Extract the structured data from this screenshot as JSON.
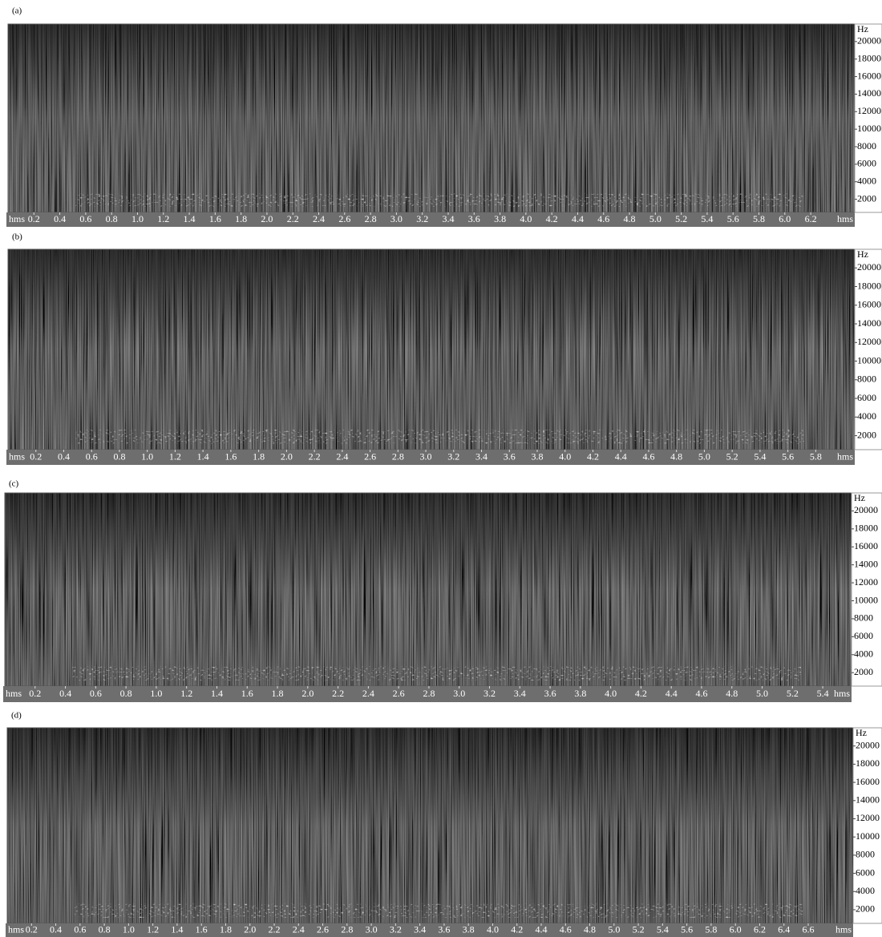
{
  "chart_data": [
    {
      "type": "spectrogram",
      "label": "(a)",
      "x_unit": "hms",
      "y_unit": "Hz",
      "xlim": [
        0,
        6.54
      ],
      "xticks": [
        0.2,
        0.4,
        0.6,
        0.8,
        {
          "value": 1,
          "label": "1.0"
        },
        1.2,
        1.4,
        1.6,
        1.8,
        {
          "value": 2,
          "label": "2.0"
        },
        2.2,
        2.4,
        2.6,
        2.8,
        {
          "value": 3,
          "label": "3.0"
        },
        3.2,
        3.4,
        3.6,
        3.8,
        {
          "value": 4,
          "label": "4.0"
        },
        4.2,
        4.4,
        4.6,
        4.8,
        {
          "value": 5,
          "label": "5.0"
        },
        5.2,
        5.4,
        5.6,
        5.8,
        {
          "value": 6,
          "label": "6.0"
        },
        6.2
      ],
      "ylim": [
        500,
        22000
      ],
      "yticks": [
        2000,
        4000,
        6000,
        8000,
        10000,
        12000,
        14000,
        16000,
        18000,
        20000
      ]
    },
    {
      "type": "spectrogram",
      "label": "(b)",
      "x_unit": "hms",
      "y_unit": "Hz",
      "xlim": [
        0,
        6.08
      ],
      "xticks": [
        0.2,
        0.4,
        0.6,
        0.8,
        {
          "value": 1,
          "label": "1.0"
        },
        1.2,
        1.4,
        1.6,
        1.8,
        {
          "value": 2,
          "label": "2.0"
        },
        2.2,
        2.4,
        2.6,
        2.8,
        {
          "value": 3,
          "label": "3.0"
        },
        3.2,
        3.4,
        3.6,
        3.8,
        {
          "value": 4,
          "label": "4.0"
        },
        4.2,
        4.4,
        4.6,
        4.8,
        {
          "value": 5,
          "label": "5.0"
        },
        5.2,
        5.4,
        5.6,
        5.8
      ],
      "ylim": [
        500,
        22000
      ],
      "yticks": [
        2000,
        4000,
        6000,
        8000,
        10000,
        12000,
        14000,
        16000,
        18000,
        20000
      ]
    },
    {
      "type": "spectrogram",
      "label": "(c)",
      "x_unit": "hms",
      "y_unit": "Hz",
      "xlim": [
        0,
        5.59
      ],
      "xticks": [
        0.2,
        0.4,
        0.6,
        0.8,
        {
          "value": 1,
          "label": "1.0"
        },
        1.2,
        1.4,
        1.6,
        1.8,
        {
          "value": 2,
          "label": "2.0"
        },
        2.2,
        2.4,
        2.6,
        2.8,
        {
          "value": 3,
          "label": "3.0"
        },
        3.2,
        3.4,
        3.6,
        3.8,
        {
          "value": 4,
          "label": "4.0"
        },
        4.2,
        4.4,
        4.6,
        4.8,
        {
          "value": 5,
          "label": "5.0"
        },
        5.2,
        5.4
      ],
      "ylim": [
        500,
        22000
      ],
      "yticks": [
        2000,
        4000,
        6000,
        8000,
        10000,
        12000,
        14000,
        16000,
        18000,
        20000
      ]
    },
    {
      "type": "spectrogram",
      "label": "(d)",
      "x_unit": "hms",
      "y_unit": "Hz",
      "xlim": [
        0,
        6.97
      ],
      "xticks": [
        0.2,
        0.4,
        0.6,
        0.8,
        {
          "value": 1,
          "label": "1.0"
        },
        1.2,
        1.4,
        1.6,
        1.8,
        {
          "value": 2,
          "label": "2.0"
        },
        2.2,
        2.4,
        2.6,
        2.8,
        {
          "value": 3,
          "label": "3.0"
        },
        3.2,
        3.4,
        3.6,
        3.8,
        {
          "value": 4,
          "label": "4.0"
        },
        4.2,
        4.4,
        4.6,
        4.8,
        {
          "value": 5,
          "label": "5.0"
        },
        5.2,
        5.4,
        5.6,
        5.8,
        {
          "value": 6,
          "label": "6.0"
        },
        6.2,
        6.4,
        6.6
      ],
      "ylim": [
        500,
        22000
      ],
      "yticks": [
        2000,
        4000,
        6000,
        8000,
        10000,
        12000,
        14000,
        16000,
        18000,
        20000
      ]
    }
  ]
}
